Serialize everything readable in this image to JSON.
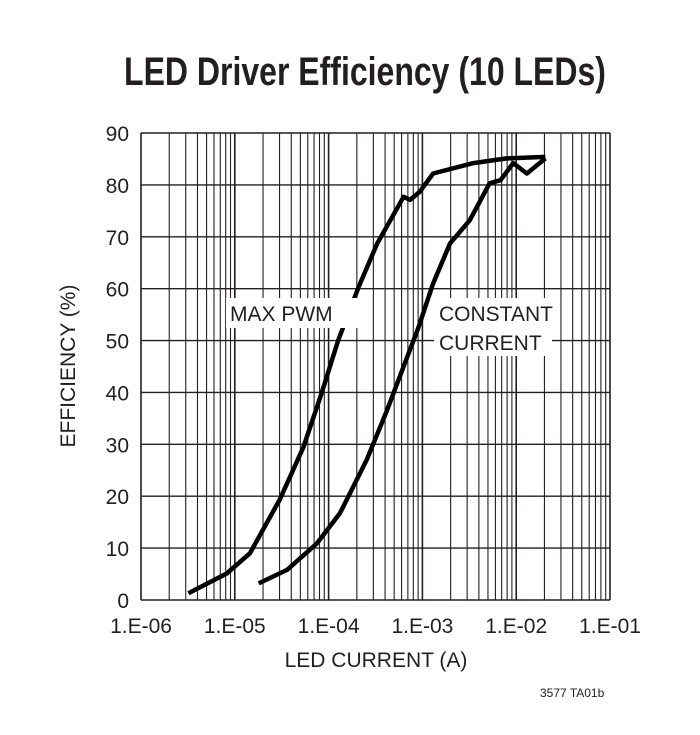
{
  "chart_data": {
    "type": "line",
    "title": "LED Driver Efficiency (10 LEDs)",
    "xlabel": "LED CURRENT (A)",
    "ylabel": "EFFICIENCY (%)",
    "xscale": "log",
    "xlim": [
      1e-06,
      0.1
    ],
    "ylim": [
      0,
      90
    ],
    "grid": true,
    "x_tick_labels": [
      "1.E-06",
      "1.E-05",
      "1.E-04",
      "1.E-03",
      "1.E-02",
      "1.E-01"
    ],
    "y_tick_labels": [
      "0",
      "10",
      "20",
      "30",
      "40",
      "50",
      "60",
      "70",
      "80",
      "90"
    ],
    "series": [
      {
        "name": "MAX PWM",
        "color": "#000000",
        "points": [
          [
            3.2e-06,
            1.3
          ],
          [
            8.2e-06,
            5.1
          ],
          [
            1.45e-05,
            9.0
          ],
          [
            3e-05,
            19.3
          ],
          [
            5.4e-05,
            29.5
          ],
          [
            8.4e-05,
            39.8
          ],
          [
            0.000127,
            50.1
          ],
          [
            0.00021,
            60.4
          ],
          [
            0.00033,
            68.7
          ],
          [
            0.00055,
            75.8
          ],
          [
            0.00063,
            77.7
          ],
          [
            0.00074,
            77.1
          ],
          [
            0.00094,
            78.7
          ],
          [
            0.0013,
            82.2
          ],
          [
            0.0035,
            84.2
          ],
          [
            0.0079,
            85.1
          ],
          [
            0.0205,
            85.4
          ]
        ]
      },
      {
        "name": "CONSTANT CURRENT",
        "color": "#000000",
        "points": [
          [
            1.8e-05,
            3.2
          ],
          [
            3.6e-05,
            5.8
          ],
          [
            7.5e-05,
            10.9
          ],
          [
            0.000132,
            16.7
          ],
          [
            0.000255,
            27.0
          ],
          [
            0.00042,
            36.6
          ],
          [
            0.00063,
            45.0
          ],
          [
            0.00091,
            52.6
          ],
          [
            0.0013,
            61.0
          ],
          [
            0.00197,
            68.7
          ],
          [
            0.0032,
            73.2
          ],
          [
            0.0052,
            80.3
          ],
          [
            0.0068,
            80.9
          ],
          [
            0.0093,
            84.2
          ],
          [
            0.013,
            82.2
          ],
          [
            0.0205,
            85.1
          ]
        ]
      }
    ],
    "annotations": [
      "MAX PWM",
      "CONSTANT",
      "CURRENT"
    ]
  },
  "footnote": "3577 TA01b"
}
